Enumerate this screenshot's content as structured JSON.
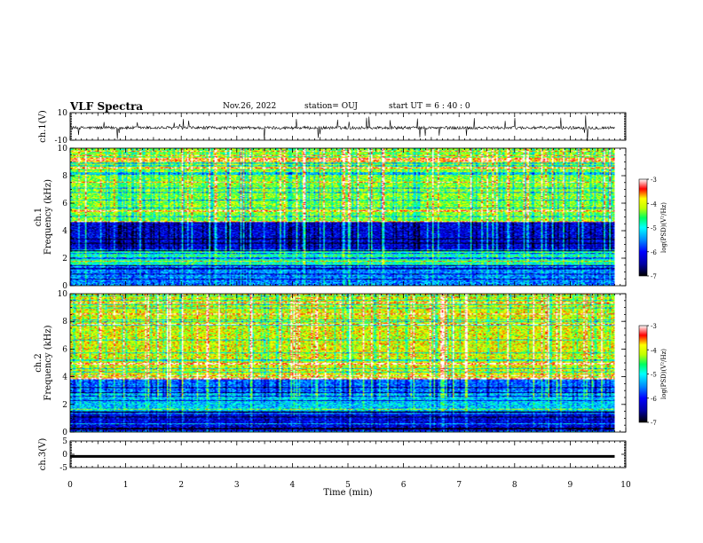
{
  "header": {
    "title": "VLF Spectra",
    "date": "Nov.26, 2022",
    "station": "station= OUJ",
    "start": "start  UT =   6 : 40 : 0"
  },
  "colors": {
    "axis": "#000000",
    "spectrum_palette": [
      "#000000",
      "#0000a0",
      "#0000ff",
      "#0088ff",
      "#00ffff",
      "#00ff80",
      "#80ff00",
      "#ffff00",
      "#ff8000",
      "#ff0000",
      "#ffffff"
    ]
  },
  "chart_data": [
    {
      "type": "line",
      "panel": "ch1-waveform",
      "ylabel": "ch.1(V)",
      "ylim": [
        -10,
        10
      ],
      "yticks": [
        "10",
        "-10"
      ],
      "xlim": [
        0,
        10
      ],
      "x": [
        0,
        1,
        2,
        3,
        4,
        5,
        6,
        7,
        8,
        9,
        9.8
      ],
      "values": [
        -1,
        -1,
        -1,
        -1,
        -1,
        -1,
        -1,
        -1,
        -1,
        -1,
        -1
      ]
    },
    {
      "type": "heatmap",
      "panel": "ch1-spectrogram",
      "ylabel": "ch.1\nFrequency (kHz)",
      "ylim": [
        0,
        10
      ],
      "yticks": [
        "0",
        "2",
        "4",
        "6",
        "8",
        "10"
      ],
      "xlim": [
        0,
        9.8
      ],
      "colorbar": {
        "label": "log(PSD)(V²/Hz)",
        "range": [
          -7,
          -3
        ],
        "ticks": [
          "-3",
          "-4",
          "-5",
          "-6",
          "-7"
        ]
      },
      "bands": [
        {
          "freq": [
            0,
            1.5
          ],
          "level": -5.5
        },
        {
          "freq": [
            1.5,
            2.5
          ],
          "level": -4.8
        },
        {
          "freq": [
            2.5,
            4.6
          ],
          "level": -6.2
        },
        {
          "freq": [
            4.6,
            10
          ],
          "level": -4.3
        }
      ]
    },
    {
      "type": "heatmap",
      "panel": "ch2-spectrogram",
      "ylabel": "ch.2\nFrequency (kHz)",
      "ylim": [
        0,
        10
      ],
      "yticks": [
        "0",
        "2",
        "4",
        "6",
        "8",
        "10"
      ],
      "xlim": [
        0,
        9.8
      ],
      "colorbar": {
        "label": "log(PSD)(V²/Hz)",
        "range": [
          -7,
          -3
        ],
        "ticks": [
          "-3",
          "-4",
          "-5",
          "-6",
          "-7"
        ]
      },
      "bands": [
        {
          "freq": [
            0,
            1.5
          ],
          "level": -6.2
        },
        {
          "freq": [
            1.5,
            2.8
          ],
          "level": -5.2
        },
        {
          "freq": [
            2.8,
            3.8
          ],
          "level": -5.6
        },
        {
          "freq": [
            3.8,
            10
          ],
          "level": -4.0
        }
      ]
    },
    {
      "type": "line",
      "panel": "ch3-waveform",
      "ylabel": "ch.3(V)",
      "ylim": [
        -5,
        5
      ],
      "yticks": [
        "5",
        "0",
        "-5"
      ],
      "xlim": [
        0,
        10
      ],
      "x": [
        0,
        9.8
      ],
      "values": [
        -0.8,
        -0.8
      ]
    }
  ],
  "xaxis": {
    "label": "Time (min)",
    "ticks": [
      "0",
      "1",
      "2",
      "3",
      "4",
      "5",
      "6",
      "7",
      "8",
      "9",
      "10"
    ]
  }
}
